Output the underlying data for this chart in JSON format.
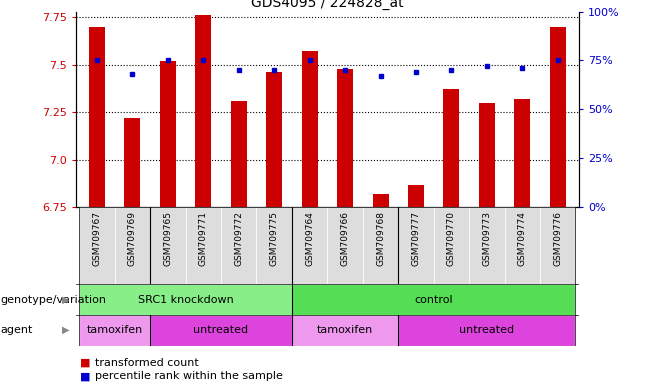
{
  "title": "GDS4095 / 224828_at",
  "samples": [
    "GSM709767",
    "GSM709769",
    "GSM709765",
    "GSM709771",
    "GSM709772",
    "GSM709775",
    "GSM709764",
    "GSM709766",
    "GSM709768",
    "GSM709777",
    "GSM709770",
    "GSM709773",
    "GSM709774",
    "GSM709776"
  ],
  "transformed_count": [
    7.7,
    7.22,
    7.52,
    7.76,
    7.31,
    7.46,
    7.57,
    7.48,
    6.82,
    6.87,
    7.37,
    7.3,
    7.32,
    7.7
  ],
  "percentile_rank": [
    75,
    68,
    75,
    75,
    70,
    70,
    75,
    70,
    67,
    69,
    70,
    72,
    71,
    75
  ],
  "ylim_left": [
    6.75,
    7.78
  ],
  "ylim_right": [
    0,
    100
  ],
  "yticks_left": [
    6.75,
    7.0,
    7.25,
    7.5,
    7.75
  ],
  "yticks_right": [
    0,
    25,
    50,
    75,
    100
  ],
  "bar_color": "#cc0000",
  "dot_color": "#0000cc",
  "bar_bottom": 6.75,
  "genotype_groups": [
    {
      "label": "SRC1 knockdown",
      "start": 0,
      "end": 6,
      "color": "#88ee88"
    },
    {
      "label": "control",
      "start": 6,
      "end": 14,
      "color": "#55dd55"
    }
  ],
  "agent_groups": [
    {
      "label": "tamoxifen",
      "start": 0,
      "end": 2,
      "color": "#ee99ee"
    },
    {
      "label": "untreated",
      "start": 2,
      "end": 6,
      "color": "#dd44dd"
    },
    {
      "label": "tamoxifen",
      "start": 6,
      "end": 9,
      "color": "#ee99ee"
    },
    {
      "label": "untreated",
      "start": 9,
      "end": 14,
      "color": "#dd44dd"
    }
  ],
  "group_separators": [
    2,
    6,
    9
  ],
  "legend_bar_label": "transformed count",
  "legend_dot_label": "percentile rank within the sample",
  "left_tick_color": "#cc0000",
  "right_tick_color": "#0000cc",
  "grid_linestyle": ":",
  "grid_linewidth": 0.8,
  "background_color": "#ffffff",
  "title_fontsize": 10,
  "tick_fontsize": 8,
  "sample_fontsize": 6.5,
  "row_label_fontsize": 8,
  "row_text_fontsize": 8,
  "legend_fontsize": 8,
  "bar_width": 0.45
}
